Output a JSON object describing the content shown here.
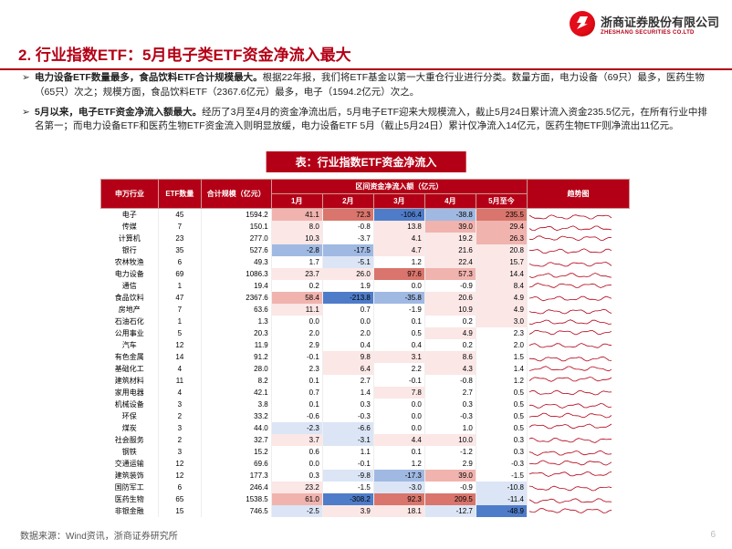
{
  "company": {
    "cn": "浙商证券股份有限公司",
    "en": "ZHESHANG SECURITIES CO.LTD"
  },
  "title": "2. 行业指数ETF：5月电子类ETF资金净流入最大",
  "bullets": [
    {
      "bold": "电力设备ETF数量最多，食品饮料ETF合计规模最大。",
      "rest": "根据22年报，我们将ETF基金以第一大重仓行业进行分类。数量方面，电力设备（69只）最多，医药生物（65只）次之；规模方面，食品饮料ETF（2367.6亿元）最多，电子（1594.2亿元）次之。"
    },
    {
      "bold": "5月以来，电子ETF资金净流入额最大。",
      "rest": "经历了3月至4月的资金净流出后，5月电子ETF迎来大规模流入，截止5月24日累计流入资金235.5亿元，在所有行业中排名第一；而电力设备ETF和医药生物ETF资金流入则明显放缓，电力设备ETF 5月（截止5月24日）累计仅净流入14亿元，医药生物ETF则净流出11亿元。"
    }
  ],
  "table_title": "表：行业指数ETF资金净流入",
  "columns": {
    "industry": "申万行业",
    "count": "ETF数量",
    "size": "合计规模（亿元）",
    "flow_group": "区间资金净流入额（亿元）",
    "months": [
      "1月",
      "2月",
      "3月",
      "4月",
      "5月至今"
    ],
    "trend": "趋势图"
  },
  "cell_colors": {
    "neg_deep": "#4f7cc9",
    "neg_mid": "#a0b9e2",
    "neg_light": "#dbe5f5",
    "pos_deep": "#d9756c",
    "pos_mid": "#f1b3ae",
    "pos_light": "#fbe7e6",
    "neutral": "#ffffff"
  },
  "rows": [
    {
      "industry": "电子",
      "count": 45,
      "size": "1594.2",
      "flows": [
        "41.1",
        "72.3",
        "-106.4",
        "-38.8",
        "235.5"
      ],
      "fcolors": [
        "pos_mid",
        "pos_deep",
        "neg_deep",
        "neg_mid",
        "pos_deep"
      ]
    },
    {
      "industry": "传媒",
      "count": 7,
      "size": "150.1",
      "flows": [
        "8.0",
        "-0.8",
        "13.8",
        "39.0",
        "29.4"
      ],
      "fcolors": [
        "pos_light",
        "neutral",
        "pos_light",
        "pos_mid",
        "pos_mid"
      ]
    },
    {
      "industry": "计算机",
      "count": 23,
      "size": "277.0",
      "flows": [
        "10.3",
        "-3.7",
        "4.1",
        "19.2",
        "26.3"
      ],
      "fcolors": [
        "pos_light",
        "neutral",
        "pos_light",
        "pos_light",
        "pos_mid"
      ]
    },
    {
      "industry": "银行",
      "count": 35,
      "size": "527.6",
      "flows": [
        "-2.8",
        "-17.5",
        "4.7",
        "21.6",
        "20.8"
      ],
      "fcolors": [
        "neg_mid",
        "neg_mid",
        "pos_light",
        "pos_light",
        "pos_light"
      ]
    },
    {
      "industry": "农林牧渔",
      "count": 6,
      "size": "49.3",
      "flows": [
        "1.7",
        "-5.1",
        "1.2",
        "22.4",
        "15.7"
      ],
      "fcolors": [
        "neutral",
        "neg_light",
        "neutral",
        "pos_light",
        "pos_light"
      ]
    },
    {
      "industry": "电力设备",
      "count": 69,
      "size": "1086.3",
      "flows": [
        "23.7",
        "26.0",
        "97.6",
        "57.3",
        "14.4"
      ],
      "fcolors": [
        "pos_light",
        "pos_light",
        "pos_deep",
        "pos_mid",
        "pos_light"
      ]
    },
    {
      "industry": "通信",
      "count": 1,
      "size": "19.4",
      "flows": [
        "0.2",
        "1.9",
        "0.0",
        "-0.9",
        "8.4"
      ],
      "fcolors": [
        "neutral",
        "neutral",
        "neutral",
        "neutral",
        "pos_light"
      ]
    },
    {
      "industry": "食品饮料",
      "count": 47,
      "size": "2367.6",
      "flows": [
        "58.4",
        "-213.8",
        "-35.8",
        "20.6",
        "4.9"
      ],
      "fcolors": [
        "pos_mid",
        "neg_deep",
        "neg_mid",
        "pos_light",
        "pos_light"
      ]
    },
    {
      "industry": "房地产",
      "count": 7,
      "size": "63.6",
      "flows": [
        "11.1",
        "0.7",
        "-1.9",
        "10.9",
        "4.9"
      ],
      "fcolors": [
        "pos_light",
        "neutral",
        "neutral",
        "pos_light",
        "pos_light"
      ]
    },
    {
      "industry": "石油石化",
      "count": 1,
      "size": "1.3",
      "flows": [
        "0.0",
        "0.0",
        "0.1",
        "0.2",
        "3.0"
      ],
      "fcolors": [
        "neutral",
        "neutral",
        "neutral",
        "neutral",
        "pos_light"
      ]
    },
    {
      "industry": "公用事业",
      "count": 5,
      "size": "20.3",
      "flows": [
        "2.0",
        "2.0",
        "0.5",
        "4.9",
        "2.3"
      ],
      "fcolors": [
        "neutral",
        "neutral",
        "neutral",
        "pos_light",
        "neutral"
      ]
    },
    {
      "industry": "汽车",
      "count": 12,
      "size": "11.9",
      "flows": [
        "2.9",
        "0.4",
        "0.4",
        "0.2",
        "2.0"
      ],
      "fcolors": [
        "neutral",
        "neutral",
        "neutral",
        "neutral",
        "neutral"
      ]
    },
    {
      "industry": "有色金属",
      "count": 14,
      "size": "91.2",
      "flows": [
        "-0.1",
        "9.8",
        "3.1",
        "8.6",
        "1.5"
      ],
      "fcolors": [
        "neutral",
        "pos_light",
        "pos_light",
        "pos_light",
        "neutral"
      ]
    },
    {
      "industry": "基础化工",
      "count": 4,
      "size": "28.0",
      "flows": [
        "2.3",
        "6.4",
        "2.2",
        "4.3",
        "1.4"
      ],
      "fcolors": [
        "neutral",
        "pos_light",
        "neutral",
        "pos_light",
        "neutral"
      ]
    },
    {
      "industry": "建筑材料",
      "count": 11,
      "size": "8.2",
      "flows": [
        "0.1",
        "2.7",
        "-0.1",
        "-0.8",
        "1.2"
      ],
      "fcolors": [
        "neutral",
        "neutral",
        "neutral",
        "neutral",
        "neutral"
      ]
    },
    {
      "industry": "家用电器",
      "count": 4,
      "size": "42.1",
      "flows": [
        "0.7",
        "1.4",
        "7.8",
        "2.7",
        "0.5"
      ],
      "fcolors": [
        "neutral",
        "neutral",
        "pos_light",
        "neutral",
        "neutral"
      ]
    },
    {
      "industry": "机械设备",
      "count": 3,
      "size": "3.8",
      "flows": [
        "0.1",
        "0.3",
        "0.0",
        "0.3",
        "0.5"
      ],
      "fcolors": [
        "neutral",
        "neutral",
        "neutral",
        "neutral",
        "neutral"
      ]
    },
    {
      "industry": "环保",
      "count": 2,
      "size": "33.2",
      "flows": [
        "-0.6",
        "-0.3",
        "0.0",
        "-0.3",
        "0.5"
      ],
      "fcolors": [
        "neutral",
        "neutral",
        "neutral",
        "neutral",
        "neutral"
      ]
    },
    {
      "industry": "煤炭",
      "count": 3,
      "size": "44.0",
      "flows": [
        "-2.3",
        "-6.6",
        "0.0",
        "1.0",
        "0.5"
      ],
      "fcolors": [
        "neg_light",
        "neg_light",
        "neutral",
        "neutral",
        "neutral"
      ]
    },
    {
      "industry": "社会服务",
      "count": 2,
      "size": "32.7",
      "flows": [
        "3.7",
        "-3.1",
        "4.4",
        "10.0",
        "0.3"
      ],
      "fcolors": [
        "pos_light",
        "neg_light",
        "pos_light",
        "pos_light",
        "neutral"
      ]
    },
    {
      "industry": "钢铁",
      "count": 3,
      "size": "15.2",
      "flows": [
        "0.6",
        "1.1",
        "0.1",
        "-1.2",
        "0.3"
      ],
      "fcolors": [
        "neutral",
        "neutral",
        "neutral",
        "neutral",
        "neutral"
      ]
    },
    {
      "industry": "交通运输",
      "count": 12,
      "size": "69.6",
      "flows": [
        "0.0",
        "-0.1",
        "1.2",
        "2.9",
        "-0.3"
      ],
      "fcolors": [
        "neutral",
        "neutral",
        "neutral",
        "neutral",
        "neutral"
      ]
    },
    {
      "industry": "建筑装饰",
      "count": 12,
      "size": "177.3",
      "flows": [
        "0.3",
        "-9.8",
        "-17.3",
        "39.0",
        "-1.5"
      ],
      "fcolors": [
        "neutral",
        "neg_light",
        "neg_mid",
        "pos_mid",
        "neutral"
      ]
    },
    {
      "industry": "国防军工",
      "count": 6,
      "size": "246.4",
      "flows": [
        "23.2",
        "-1.5",
        "-3.0",
        "-0.9",
        "-10.8"
      ],
      "fcolors": [
        "pos_light",
        "neutral",
        "neg_light",
        "neutral",
        "neg_light"
      ]
    },
    {
      "industry": "医药生物",
      "count": 65,
      "size": "1538.5",
      "flows": [
        "61.0",
        "-308.2",
        "92.3",
        "209.5",
        "-11.4"
      ],
      "fcolors": [
        "pos_mid",
        "neg_deep",
        "pos_deep",
        "pos_deep",
        "neg_light"
      ]
    },
    {
      "industry": "非银金融",
      "count": 15,
      "size": "746.5",
      "flows": [
        "-2.5",
        "3.9",
        "18.1",
        "-12.7",
        "-48.9"
      ],
      "fcolors": [
        "neg_light",
        "pos_light",
        "pos_light",
        "neg_light",
        "neg_deep"
      ]
    }
  ],
  "sparkline_color": "#b40016",
  "source": "数据来源：Wind资讯，浙商证券研究所",
  "page": "6",
  "col_widths": {
    "industry": 54,
    "count": 40,
    "size": 66,
    "flow": 48,
    "trend": 96
  }
}
